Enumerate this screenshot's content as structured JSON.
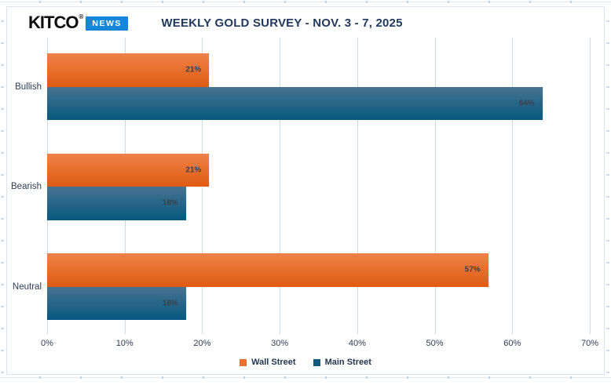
{
  "logo": {
    "brand": "KITCO",
    "registered": "®",
    "badge": "NEWS"
  },
  "title": "WEEKLY GOLD SURVEY - NOV. 3 - 7, 2025",
  "chart_data": {
    "type": "bar",
    "orientation": "horizontal",
    "title": "WEEKLY GOLD SURVEY - NOV. 3 - 7, 2025",
    "categories": [
      "Bullish",
      "Bearish",
      "Neutral"
    ],
    "series": [
      {
        "name": "Wall Street",
        "color": "#ec7031",
        "values": [
          21,
          21,
          57
        ]
      },
      {
        "name": "Main Street",
        "color": "#14597e",
        "values": [
          64,
          18,
          18
        ]
      }
    ],
    "value_suffix": "%",
    "x_ticks": [
      "0%",
      "10%",
      "20%",
      "30%",
      "40%",
      "50%",
      "60%",
      "70%"
    ],
    "xlim": [
      0,
      70
    ],
    "grid": true,
    "gridline_color": "#c6dbec",
    "legend_position": "bottom",
    "bar_gradients": {
      "wall_street": [
        "#ee8349",
        "#e05a12"
      ],
      "main_street": [
        "#487390",
        "#07587f"
      ]
    }
  }
}
